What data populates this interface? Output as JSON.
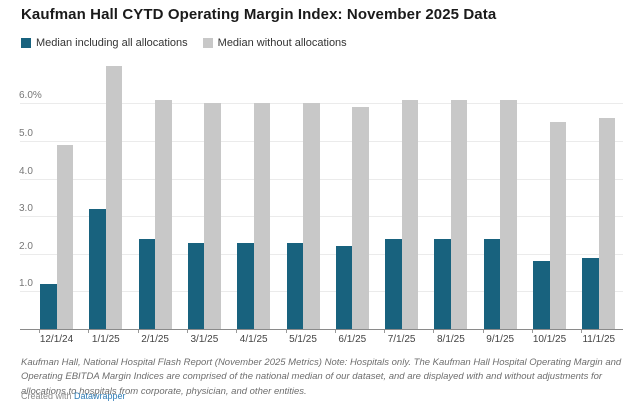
{
  "title": "Kaufman Hall CYTD Operating Margin Index: November 2025 Data",
  "legend": {
    "items": [
      {
        "label": "Median including all allocations",
        "color": "#18627e"
      },
      {
        "label": "Median without allocations",
        "color": "#c8c8c8"
      }
    ]
  },
  "chart_data": {
    "type": "bar",
    "title": "Kaufman Hall CYTD Operating Margin Index: November 2025 Data",
    "categories": [
      "12/1/24",
      "1/1/25",
      "2/1/25",
      "3/1/25",
      "4/1/25",
      "5/1/25",
      "6/1/25",
      "7/1/25",
      "8/1/25",
      "9/1/25",
      "10/1/25",
      "11/1/25"
    ],
    "series": [
      {
        "name": "Median including all allocations",
        "color": "#18627e",
        "values": [
          1.2,
          3.2,
          2.4,
          2.3,
          2.3,
          2.3,
          2.2,
          2.4,
          2.4,
          2.4,
          1.8,
          1.9
        ]
      },
      {
        "name": "Median without allocations",
        "color": "#c8c8c8",
        "values": [
          4.9,
          7.0,
          6.1,
          6.0,
          6.0,
          6.0,
          5.9,
          6.1,
          6.1,
          6.1,
          5.5,
          5.6
        ]
      }
    ],
    "xlabel": "",
    "ylabel": "",
    "ylim": [
      0,
      7.1
    ],
    "yticks": [
      {
        "value": 1,
        "label": "1.0"
      },
      {
        "value": 2,
        "label": "2.0"
      },
      {
        "value": 3,
        "label": "3.0"
      },
      {
        "value": 4,
        "label": "4.0"
      },
      {
        "value": 5,
        "label": "5.0"
      },
      {
        "value": 6,
        "label": "6.0%"
      }
    ],
    "grid": "horizontal",
    "legend_position": "top",
    "unit": "%"
  },
  "footer": {
    "note": "Kaufman Hall, National Hospital Flash Report (November 2025 Metrics) Note: Hospitals only. The Kaufman Hall Hospital Operating Margin and Operating EBITDA Margin Indices are comprised of the national median of our dataset, and are displayed with and without adjustments for allocations to hospitals from corporate, physician, and other entities.",
    "credit_prefix": "Created with ",
    "credit_link": "Datawrapper"
  },
  "colors": {
    "series_with_allocations": "#18627e",
    "series_without_allocations": "#c8c8c8",
    "gridline": "#ebebeb",
    "axis": "#8a8a8a",
    "link": "#2d7bb5"
  }
}
